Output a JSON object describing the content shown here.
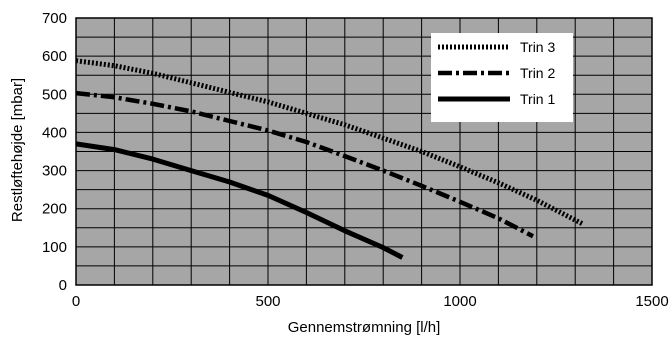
{
  "chart_data": {
    "type": "line",
    "title": "",
    "xlabel": "Gennemstrømning [l/h]",
    "ylabel": "Restløftehøjde [mbar]",
    "xlim": [
      0,
      1500
    ],
    "ylim": [
      0,
      700
    ],
    "xticks": [
      0,
      500,
      1000,
      1500
    ],
    "yticks": [
      0,
      100,
      200,
      300,
      400,
      500,
      600,
      700
    ],
    "x_gridlines": [
      0,
      100,
      200,
      300,
      400,
      500,
      600,
      700,
      800,
      900,
      1000,
      1100,
      1200,
      1300,
      1400,
      1500
    ],
    "y_gridlines": [
      0,
      50,
      100,
      150,
      200,
      250,
      300,
      350,
      400,
      450,
      500,
      550,
      600,
      650,
      700
    ],
    "grid": true,
    "legend_position": "top-right",
    "colors": {
      "plot_background": "#a6a6a6",
      "grid": "#000000",
      "lines": "#000000",
      "legend_background": "#ffffff"
    },
    "series": [
      {
        "name": "Trin 3",
        "style": "dotted",
        "x": [
          0,
          100,
          200,
          300,
          400,
          500,
          600,
          700,
          800,
          900,
          1000,
          1100,
          1200,
          1320
        ],
        "y": [
          588,
          575,
          555,
          530,
          505,
          480,
          450,
          420,
          385,
          350,
          310,
          268,
          222,
          160
        ]
      },
      {
        "name": "Trin 2",
        "style": "dash-dot",
        "x": [
          0,
          100,
          200,
          300,
          400,
          500,
          600,
          700,
          800,
          900,
          1000,
          1100,
          1190
        ],
        "y": [
          503,
          492,
          475,
          455,
          430,
          405,
          375,
          338,
          300,
          260,
          218,
          175,
          128
        ]
      },
      {
        "name": "Trin 1",
        "style": "solid",
        "x": [
          0,
          100,
          200,
          300,
          400,
          500,
          600,
          700,
          800,
          850
        ],
        "y": [
          370,
          355,
          330,
          300,
          270,
          235,
          190,
          142,
          98,
          72
        ]
      }
    ]
  }
}
